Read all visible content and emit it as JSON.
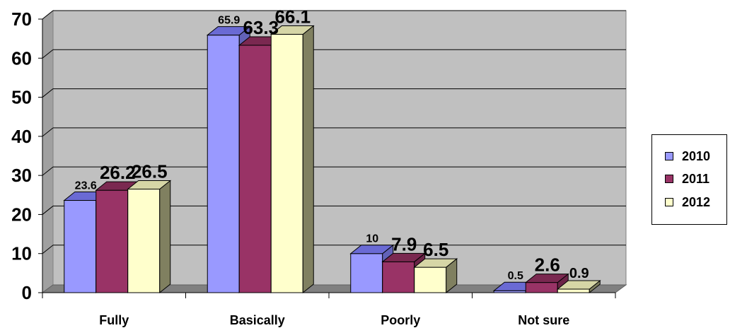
{
  "chart_data": {
    "type": "bar",
    "categories": [
      "Fully",
      "Basically",
      "Poorly",
      "Not sure"
    ],
    "series": [
      {
        "name": "2010",
        "values": [
          23.6,
          65.9,
          10,
          0.5
        ],
        "color": "#9999ff",
        "top": "#6a6ad4",
        "side": "#6262b8"
      },
      {
        "name": "2011",
        "values": [
          26.2,
          63.3,
          7.9,
          2.6
        ],
        "color": "#993366",
        "top": "#7a2850",
        "side": "#6b2347"
      },
      {
        "name": "2012",
        "values": [
          26.5,
          66.1,
          6.5,
          0.9
        ],
        "color": "#ffffcc",
        "top": "#d6d6a6",
        "side": "#808060"
      }
    ],
    "ylim": [
      0,
      70
    ],
    "yticks": [
      0,
      10,
      20,
      30,
      40,
      50,
      60,
      70
    ],
    "grid": true,
    "legend_position": "right",
    "title": "",
    "xlabel": "",
    "ylabel": ""
  }
}
